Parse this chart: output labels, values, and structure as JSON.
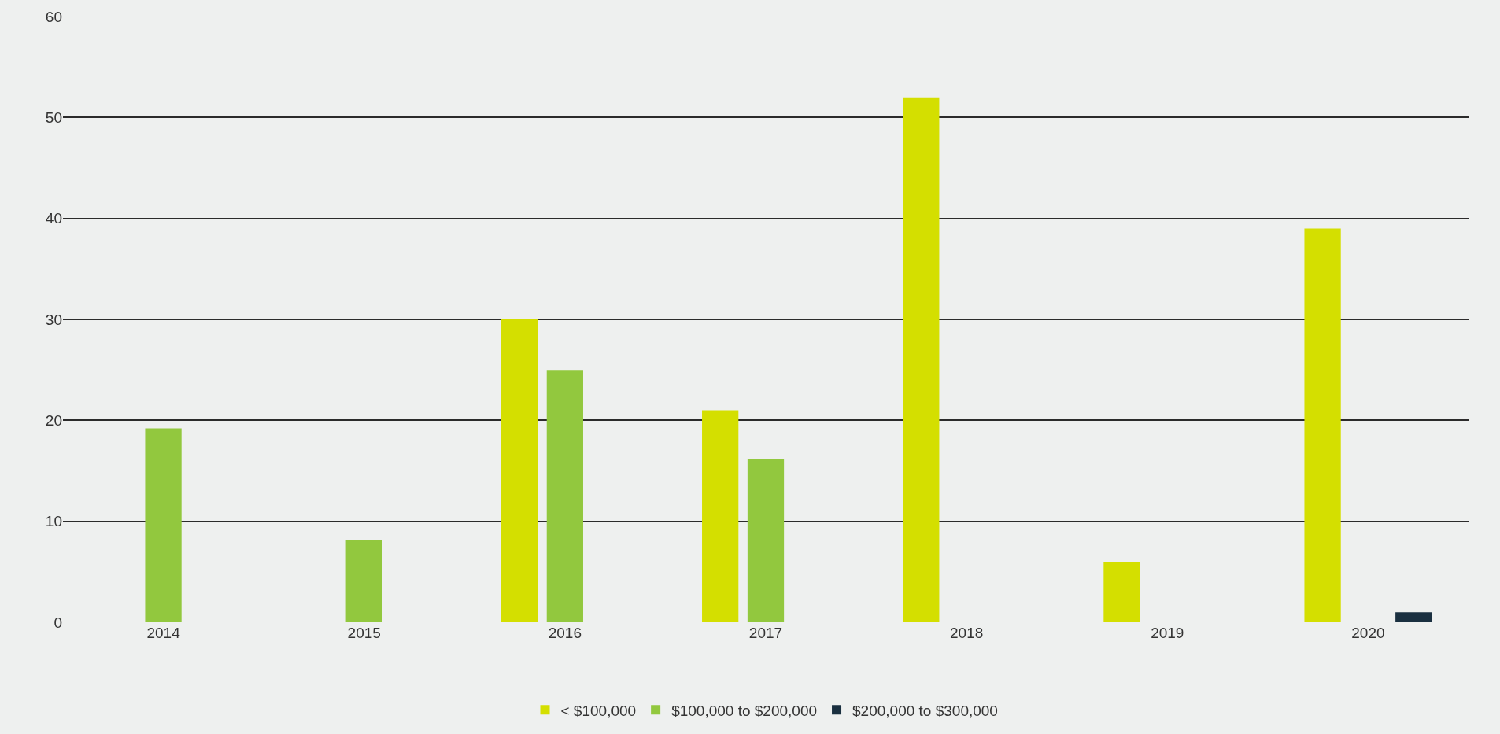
{
  "chart_data": {
    "type": "bar",
    "categories": [
      "2014",
      "2015",
      "2016",
      "2017",
      "2018",
      "2019",
      "2020"
    ],
    "series": [
      {
        "name": "< $100,000",
        "color": "#d4df00",
        "values": [
          null,
          null,
          30,
          21,
          52,
          6,
          39
        ]
      },
      {
        "name": "$100,000 to $200,000",
        "color": "#92c83e",
        "values": [
          19.2,
          8.1,
          25,
          16.2,
          null,
          null,
          null
        ]
      },
      {
        "name": "$200,000 to $300,000",
        "color": "#1a3040",
        "values": [
          null,
          null,
          null,
          null,
          null,
          null,
          1
        ]
      }
    ],
    "ylim": [
      0,
      60
    ],
    "yticks": [
      0,
      10,
      20,
      30,
      40,
      50,
      60
    ],
    "grid": "y",
    "legend": "bottom"
  }
}
